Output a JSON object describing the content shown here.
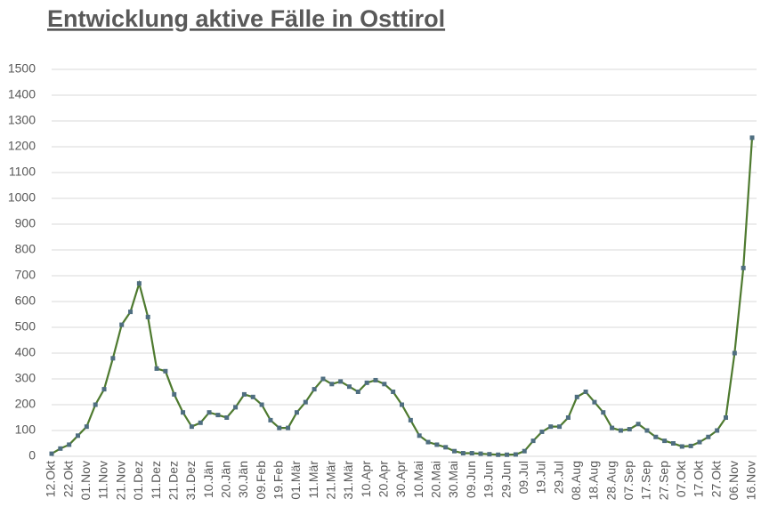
{
  "chart_data": {
    "type": "line",
    "title": "Entwicklung aktive Fälle in Osttirol",
    "categories": [
      "12.Okt",
      null,
      "22.Okt",
      null,
      "01.Nov",
      null,
      "11.Nov",
      null,
      "21.Nov",
      null,
      "01.Dez",
      null,
      "11.Dez",
      null,
      "21.Dez",
      null,
      "31.Dez",
      null,
      "10.Jän",
      null,
      "20.Jän",
      null,
      "30.Jän",
      null,
      "09.Feb",
      null,
      "19.Feb",
      null,
      "01.Mär",
      null,
      "11.Mär",
      null,
      "21.Mär",
      null,
      "31.Mär",
      null,
      "10.Apr",
      null,
      "20.Apr",
      null,
      "30.Apr",
      null,
      "10.Mai",
      null,
      "20.Mai",
      null,
      "30.Mai",
      null,
      "09.Jun",
      null,
      "19.Jun",
      null,
      "29.Jun",
      null,
      "09.Jul",
      null,
      "19.Jul",
      null,
      "29.Jul",
      null,
      "08.Aug",
      null,
      "18.Aug",
      null,
      "28.Aug",
      null,
      "07.Sep",
      null,
      "17.Sep",
      null,
      "27.Sep",
      null,
      "07.Okt",
      null,
      "17.Okt",
      null,
      "27.Okt",
      null,
      "06.Nov",
      null,
      "16.Nov"
    ],
    "series": [
      {
        "color": "#4e7a2f",
        "marker_color": "#4f6e80",
        "values": [
          10,
          30,
          45,
          80,
          115,
          200,
          260,
          380,
          510,
          560,
          670,
          540,
          340,
          330,
          240,
          170,
          115,
          130,
          170,
          160,
          150,
          190,
          240,
          230,
          200,
          140,
          110,
          110,
          170,
          210,
          260,
          300,
          280,
          290,
          270,
          250,
          285,
          295,
          280,
          250,
          200,
          140,
          80,
          55,
          45,
          35,
          20,
          12,
          12,
          10,
          8,
          6,
          6,
          7,
          20,
          60,
          95,
          115,
          115,
          150,
          230,
          250,
          210,
          170,
          110,
          100,
          105,
          125,
          100,
          75,
          60,
          50,
          38,
          40,
          55,
          75,
          100,
          150,
          400,
          730,
          1235
        ]
      }
    ],
    "ylim": [
      0,
      1500
    ],
    "yticks": [
      0,
      100,
      200,
      300,
      400,
      500,
      600,
      700,
      800,
      900,
      1000,
      1100,
      1200,
      1300,
      1400,
      1500
    ],
    "grid": true
  }
}
